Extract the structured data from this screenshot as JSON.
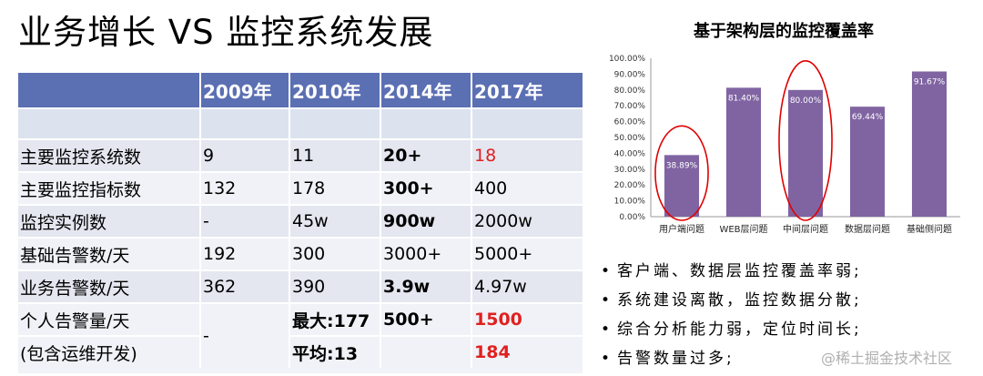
{
  "title": "业务增长 VS 监控系统发展",
  "table": {
    "headers": [
      "",
      "2009年",
      "2010年",
      "2014年",
      "2017年"
    ],
    "rows": [
      {
        "label": "主要监控系统数",
        "c2009": "9",
        "c2010": "11",
        "c2014": "20+",
        "c2017": "18"
      },
      {
        "label": "主要监控指标数",
        "c2009": "132",
        "c2010": "178",
        "c2014": "300+",
        "c2017": "400"
      },
      {
        "label": "监控实例数",
        "c2009": "-",
        "c2010": "45w",
        "c2014": "900w",
        "c2017": "2000w"
      },
      {
        "label": "基础告警数/天",
        "c2009": "192",
        "c2010": "300",
        "c2014": "3000+",
        "c2017": "5000+"
      },
      {
        "label": "业务告警数/天",
        "c2009": "362",
        "c2010": "390",
        "c2014": "3.9w",
        "c2017": "4.97w"
      }
    ],
    "personal": {
      "label1": "个人告警量/天",
      "label2": "(包含运维开发)",
      "c2009": "-",
      "max": "最大:177",
      "avg": "平均:13",
      "c2014": "500+",
      "c2017_a": "1500",
      "c2017_b": "184"
    }
  },
  "chart_data": {
    "type": "bar",
    "title": "基于架构层的监控覆盖率",
    "categories": [
      "用户端问题",
      "WEB层问题",
      "中间层问题",
      "数据层问题",
      "基础侧问题"
    ],
    "values": [
      38.89,
      81.4,
      80.0,
      69.44,
      91.67
    ],
    "data_labels": [
      "38.89%",
      "81.40%",
      "80.00%",
      "69.44%",
      "91.67%"
    ],
    "ylim": [
      0,
      100
    ],
    "yticks": [
      "0.00%",
      "10.00%",
      "20.00%",
      "30.00%",
      "40.00%",
      "50.00%",
      "60.00%",
      "70.00%",
      "80.00%",
      "90.00%",
      "100.00%"
    ],
    "bar_color": "#8064a2",
    "highlight_color": "#e00000",
    "highlighted": [
      "用户端问题",
      "中间层问题"
    ],
    "grid": false,
    "legend": "none"
  },
  "bullets": [
    "客户端、数据层监控覆盖率弱;",
    "系统建设离散，监控数据分散;",
    "综合分析能力弱，定位时间长;",
    "告警数量过多;"
  ],
  "bullet_marker": "•",
  "watermark": "@稀土掘金技术社区"
}
